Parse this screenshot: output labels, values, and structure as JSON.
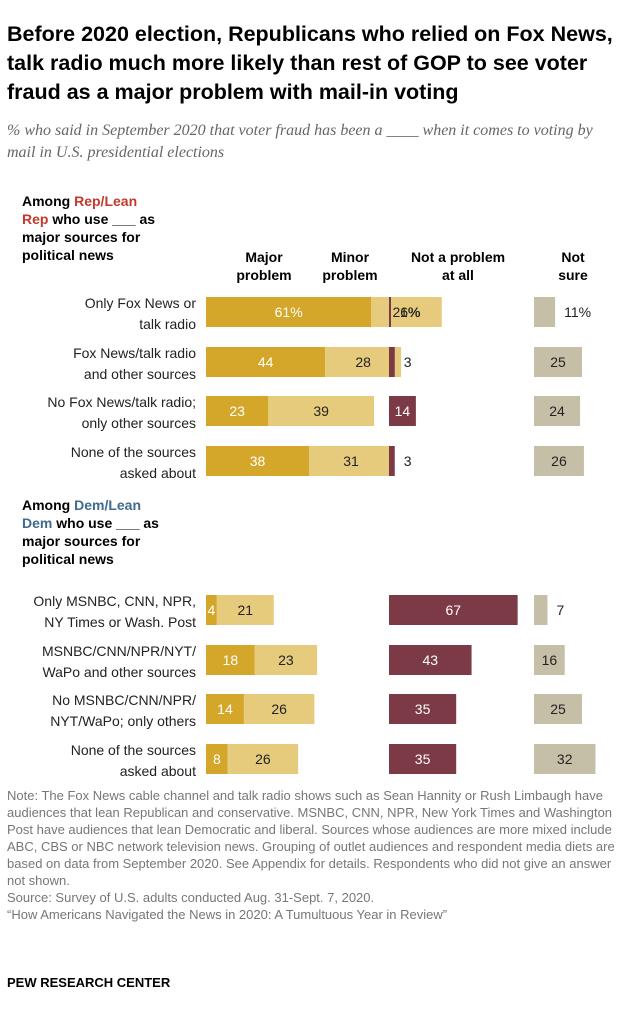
{
  "title": "Before 2020 election, Republicans who relied on Fox News, talk radio much more likely than rest of GOP to see voter fraud as a major problem with mail-in voting",
  "subtitle": "% who said in September 2020 that voter fraud has been a ____ when it comes to voting by mail in U.S. presidential elections",
  "colors": {
    "major": "#d4a62a",
    "minor": "#e6cb7c",
    "not_problem": "#7b3a46",
    "not_sure": "#c6bfa8",
    "rep": "#c23a2c",
    "dem": "#3f6b8e"
  },
  "chart_data": {
    "type": "bar",
    "columns": [
      {
        "key": "major",
        "label": [
          "Major",
          "problem"
        ]
      },
      {
        "key": "minor",
        "label": [
          "Minor",
          "problem"
        ]
      },
      {
        "key": "not_problem",
        "label": [
          "Not a problem",
          "at all"
        ]
      },
      {
        "key": "not_sure",
        "label": [
          "Not",
          "sure"
        ]
      }
    ],
    "groups": [
      {
        "heading": [
          [
            {
              "t": "Among "
            },
            {
              "t": "Rep/Lean",
              "c": "rep"
            }
          ],
          [
            {
              "t": "Rep",
              "c": "rep"
            },
            {
              "t": " who use ___ as"
            }
          ],
          [
            {
              "t": "major sources for"
            }
          ],
          [
            {
              "t": "political news"
            }
          ]
        ],
        "rows": [
          {
            "label": [
              "Only Fox News or",
              "talk radio"
            ],
            "major": 61,
            "minor": 26,
            "not_problem": 1,
            "not_sure": 11,
            "labels": {
              "major": "61%",
              "minor": "26%",
              "not_problem": "1%",
              "not_sure": "11%"
            }
          },
          {
            "label": [
              "Fox News/talk radio",
              "and other sources"
            ],
            "major": 44,
            "minor": 28,
            "not_problem": 3,
            "not_sure": 25,
            "labels": {
              "major": "44",
              "minor": "28",
              "not_problem": "3",
              "not_sure": "25"
            }
          },
          {
            "label": [
              "No Fox News/talk radio;",
              "only other sources"
            ],
            "major": 23,
            "minor": 39,
            "not_problem": 14,
            "not_sure": 24,
            "labels": {
              "major": "23",
              "minor": "39",
              "not_problem": "14",
              "not_sure": "24"
            }
          },
          {
            "label": [
              "None of the sources",
              "asked about"
            ],
            "major": 38,
            "minor": 31,
            "not_problem": 3,
            "not_sure": 26,
            "labels": {
              "major": "38",
              "minor": "31",
              "not_problem": "3",
              "not_sure": "26"
            }
          }
        ]
      },
      {
        "heading": [
          [
            {
              "t": "Among "
            },
            {
              "t": "Dem/Lean",
              "c": "dem"
            }
          ],
          [
            {
              "t": "Dem",
              "c": "dem"
            },
            {
              "t": " who use ___ as"
            }
          ],
          [
            {
              "t": "major sources for"
            }
          ],
          [
            {
              "t": "political news"
            }
          ]
        ],
        "rows": [
          {
            "label": [
              "Only MSNBC, CNN, NPR,",
              "NY Times or Wash. Post"
            ],
            "major": 4,
            "minor": 21,
            "not_problem": 67,
            "not_sure": 7,
            "labels": {
              "major": "4",
              "minor": "21",
              "not_problem": "67",
              "not_sure": "7"
            }
          },
          {
            "label": [
              "MSNBC/CNN/NPR/NYT/",
              "WaPo and other sources"
            ],
            "major": 18,
            "minor": 23,
            "not_problem": 43,
            "not_sure": 16,
            "labels": {
              "major": "18",
              "minor": "23",
              "not_problem": "43",
              "not_sure": "16"
            }
          },
          {
            "label": [
              "No MSNBC/CNN/NPR/",
              "NYT/WaPo; only others"
            ],
            "major": 14,
            "minor": 26,
            "not_problem": 35,
            "not_sure": 25,
            "labels": {
              "major": "14",
              "minor": "26",
              "not_problem": "35",
              "not_sure": "25"
            }
          },
          {
            "label": [
              "None of the sources",
              "asked about"
            ],
            "major": 8,
            "minor": 26,
            "not_problem": 35,
            "not_sure": 32,
            "labels": {
              "major": "8",
              "minor": "26",
              "not_problem": "35",
              "not_sure": "32"
            }
          }
        ]
      }
    ]
  },
  "notes": [
    "Note: The Fox News cable channel and talk radio shows such as Sean Hannity or Rush Limbaugh have audiences that lean Republican and conservative. MSNBC, CNN, NPR, New York Times and Washington Post have audiences that lean Democratic and liberal. Sources whose audiences are more mixed include ABC, CBS or NBC network television news. Grouping of outlet audiences and respondent media diets are based on data from September 2020. See Appendix for details. Respondents who did not give an answer not shown.",
    "Source: Survey of U.S. adults conducted Aug. 31-Sept. 7, 2020.",
    "“How Americans Navigated the News in 2020: A Tumultuous Year in Review”"
  ],
  "credit": "PEW RESEARCH CENTER"
}
